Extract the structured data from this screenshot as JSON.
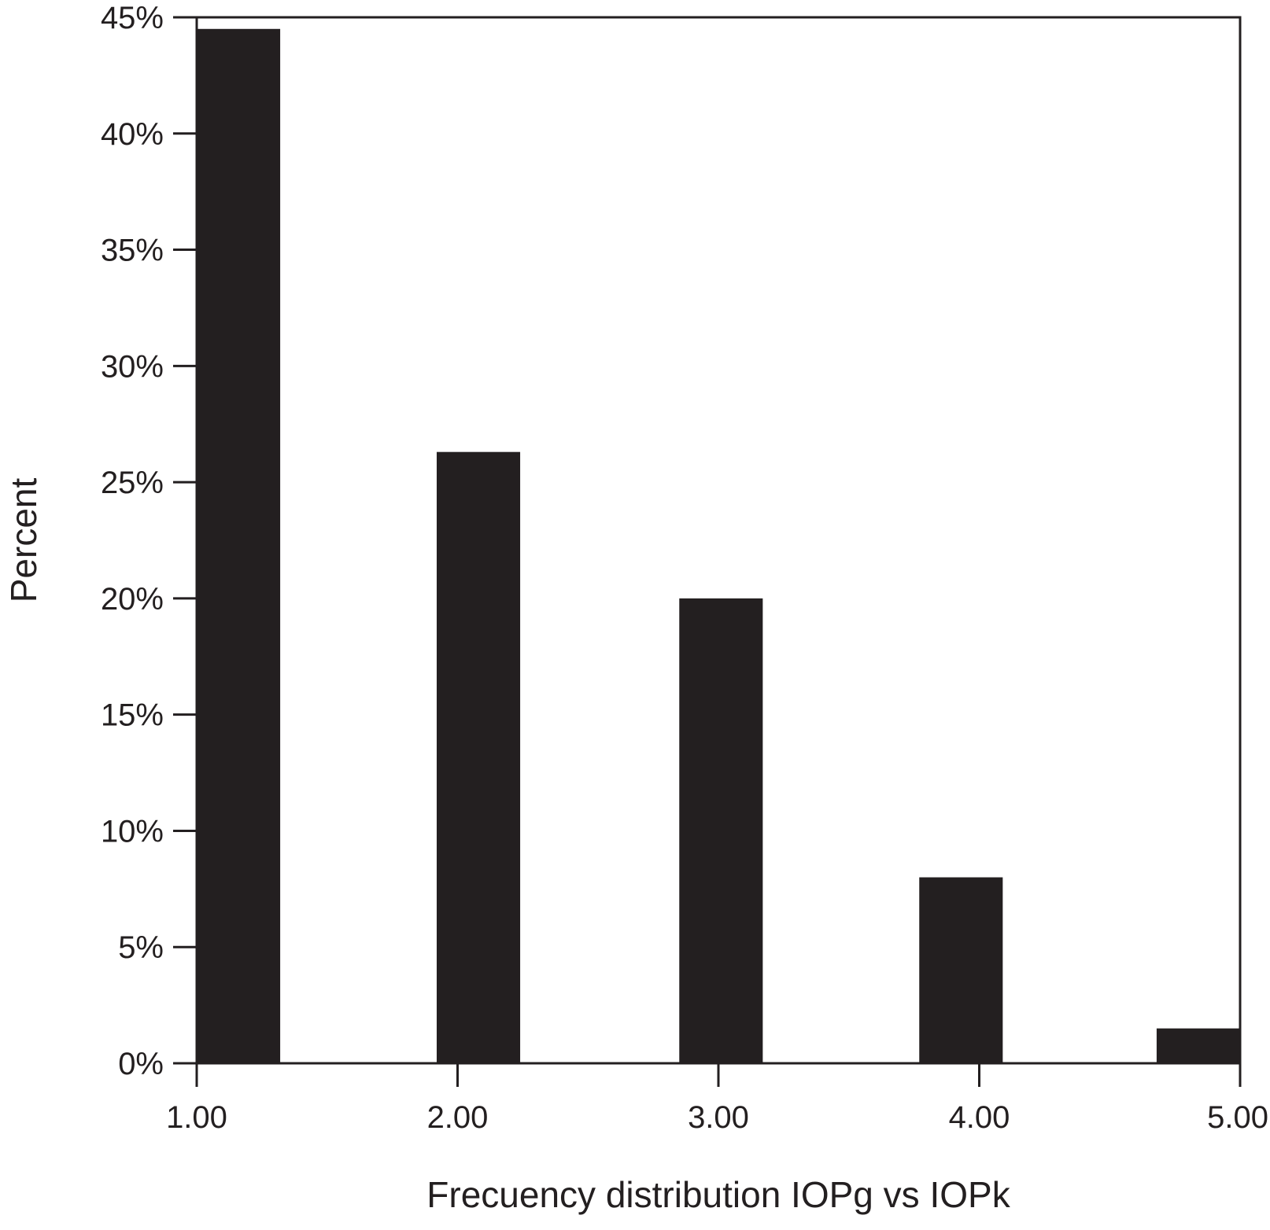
{
  "chart_data": {
    "type": "bar",
    "x": [
      1.0,
      2.0,
      3.0,
      4.0,
      5.0
    ],
    "bars": [
      {
        "x_start": 1.0,
        "x_end": 1.32,
        "value": 44.5
      },
      {
        "x_start": 1.92,
        "x_end": 2.24,
        "value": 26.3
      },
      {
        "x_start": 2.85,
        "x_end": 3.17,
        "value": 20.0
      },
      {
        "x_start": 3.77,
        "x_end": 4.09,
        "value": 8.0
      },
      {
        "x_start": 4.68,
        "x_end": 5.0,
        "value": 1.5
      }
    ],
    "xlabel": "Frecuency distribution IOPg vs IOPk",
    "ylabel": "Percent",
    "xlim": [
      1.0,
      5.0
    ],
    "ylim": [
      0,
      45
    ],
    "x_ticks": [
      1.0,
      2.0,
      3.0,
      4.0,
      5.0
    ],
    "x_tick_labels": [
      "1.00",
      "2.00",
      "3.00",
      "4.00",
      "5.00"
    ],
    "y_ticks": [
      0,
      5,
      10,
      15,
      20,
      25,
      30,
      35,
      40,
      45
    ],
    "y_tick_labels": [
      "0%",
      "5%",
      "10%",
      "15%",
      "20%",
      "25%",
      "30%",
      "35%",
      "40%",
      "45%"
    ],
    "grid": false,
    "legend": "none",
    "bar_color": "#231f20",
    "axis_color": "#231f20"
  }
}
